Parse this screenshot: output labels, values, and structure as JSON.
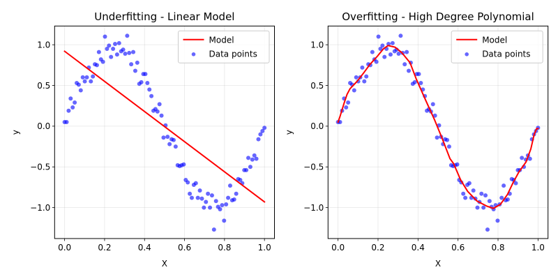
{
  "chart_data": [
    {
      "type": "scatter",
      "title": "Underfitting - Linear Model",
      "xlabel": "X",
      "ylabel": "y",
      "xlim": [
        -0.05,
        1.05
      ],
      "ylim": [
        -1.38,
        1.23
      ],
      "xticks": [
        0.0,
        0.2,
        0.4,
        0.6,
        0.8,
        1.0
      ],
      "xtick_labels": [
        "0.0",
        "0.2",
        "0.4",
        "0.6",
        "0.8",
        "1.0"
      ],
      "yticks": [
        -1.0,
        -0.5,
        0.0,
        0.5,
        1.0
      ],
      "ytick_labels": [
        "−1.0",
        "−0.5",
        "0.0",
        "0.5",
        "1.0"
      ],
      "grid": true,
      "legend_position": "top-right",
      "legend": [
        {
          "label": "Model",
          "kind": "line",
          "color": "#ff0000"
        },
        {
          "label": "Data points",
          "kind": "marker",
          "color": "#0000ff"
        }
      ],
      "series": [
        {
          "name": "Data points",
          "kind": "scatter",
          "color": "#0000ff",
          "alpha": 0.6,
          "dataset": "shared"
        },
        {
          "name": "Model",
          "kind": "line",
          "color": "#ff0000",
          "x": [
            0.0,
            1.0
          ],
          "y": [
            0.92,
            -0.93
          ]
        }
      ]
    },
    {
      "type": "scatter",
      "title": "Overfitting - High Degree Polynomial",
      "xlabel": "X",
      "ylabel": "y",
      "xlim": [
        -0.05,
        1.05
      ],
      "ylim": [
        -1.38,
        1.23
      ],
      "xticks": [
        0.0,
        0.2,
        0.4,
        0.6,
        0.8,
        1.0
      ],
      "xtick_labels": [
        "0.0",
        "0.2",
        "0.4",
        "0.6",
        "0.8",
        "1.0"
      ],
      "yticks": [
        -1.0,
        -0.5,
        0.0,
        0.5,
        1.0
      ],
      "ytick_labels": [
        "−1.0",
        "−0.5",
        "0.0",
        "0.5",
        "1.0"
      ],
      "grid": true,
      "legend_position": "top-right",
      "legend": [
        {
          "label": "Model",
          "kind": "line",
          "color": "#ff0000"
        },
        {
          "label": "Data points",
          "kind": "marker",
          "color": "#0000ff"
        }
      ],
      "series": [
        {
          "name": "Data points",
          "kind": "scatter",
          "color": "#0000ff",
          "alpha": 0.6,
          "dataset": "shared"
        },
        {
          "name": "Model",
          "kind": "line",
          "color": "#ff0000",
          "x": [
            0.0,
            0.01,
            0.03,
            0.045,
            0.06,
            0.095,
            0.13,
            0.16,
            0.197,
            0.227,
            0.25,
            0.285,
            0.32,
            0.36,
            0.391,
            0.438,
            0.484,
            0.519,
            0.56,
            0.578,
            0.613,
            0.648,
            0.695,
            0.742,
            0.777,
            0.812,
            0.847,
            0.876,
            0.905,
            0.94,
            0.964,
            0.981,
            0.993,
            1.0
          ],
          "y": [
            0.05,
            0.12,
            0.28,
            0.39,
            0.46,
            0.55,
            0.66,
            0.76,
            0.86,
            0.95,
            0.99,
            0.97,
            0.9,
            0.78,
            0.58,
            0.32,
            0.07,
            -0.14,
            -0.4,
            -0.46,
            -0.66,
            -0.8,
            -0.92,
            -0.98,
            -1.01,
            -0.96,
            -0.84,
            -0.69,
            -0.56,
            -0.44,
            -0.28,
            -0.1,
            -0.03,
            -0.03
          ]
        }
      ]
    }
  ],
  "shared_data_points": {
    "x_start": 0.0,
    "x_end": 1.0,
    "count": 100,
    "y": [
      0.05,
      0.05,
      0.19,
      0.34,
      0.23,
      0.29,
      0.53,
      0.51,
      0.44,
      0.6,
      0.55,
      0.6,
      0.72,
      0.55,
      0.61,
      0.76,
      0.75,
      0.91,
      0.82,
      0.79,
      1.1,
      0.95,
      0.99,
      0.85,
      0.95,
      1.01,
      0.88,
      1.02,
      0.92,
      0.94,
      0.89,
      1.11,
      0.9,
      0.76,
      0.91,
      0.68,
      0.78,
      0.52,
      0.54,
      0.64,
      0.64,
      0.53,
      0.45,
      0.37,
      0.19,
      0.21,
      0.18,
      0.27,
      0.13,
      -0.14,
      0.01,
      -0.13,
      -0.22,
      -0.16,
      -0.17,
      -0.25,
      -0.48,
      -0.49,
      -0.48,
      -0.47,
      -0.66,
      -0.69,
      -0.83,
      -0.88,
      -0.72,
      -0.7,
      -0.88,
      -0.79,
      -0.89,
      -1.0,
      -0.93,
      -0.83,
      -1.0,
      -0.85,
      -1.27,
      -0.92,
      -0.99,
      -1.02,
      -0.97,
      -1.16,
      -0.96,
      -0.88,
      -0.73,
      -0.91,
      -0.9,
      -0.83,
      -0.65,
      -0.66,
      -0.7,
      -0.54,
      -0.54,
      -0.39,
      -0.5,
      -0.41,
      -0.36,
      -0.4,
      -0.16,
      -0.1,
      -0.06,
      -0.02
    ]
  }
}
